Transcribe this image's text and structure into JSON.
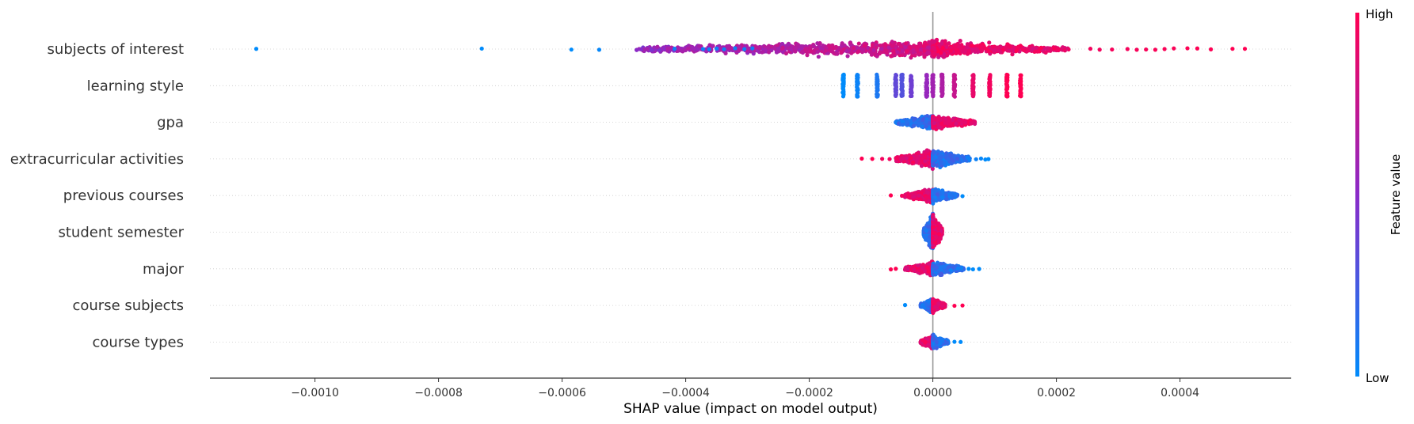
{
  "chart_data": {
    "type": "scatter",
    "subtype": "shap-beeswarm",
    "title": "",
    "xlabel": "SHAP value (impact on model output)",
    "xlim": [
      -0.00117,
      0.00058
    ],
    "xticks": [
      -0.001,
      -0.0008,
      -0.0006,
      -0.0004,
      -0.0002,
      0.0,
      0.0002,
      0.0004
    ],
    "xtick_labels": [
      "−0.0010",
      "−0.0008",
      "−0.0006",
      "−0.0004",
      "−0.0002",
      "0.0000",
      "0.0002",
      "0.0004"
    ],
    "zero_line": 0.0,
    "grid": "horizontal dotted per feature",
    "colorbar": {
      "label": "Feature value",
      "high_label": "High",
      "low_label": "Low",
      "low_color": "#008bfb",
      "mid_color": "#8a2bc8",
      "high_color": "#ff0052"
    },
    "features": [
      {
        "name": "subjects of interest",
        "clusters": [
          {
            "x": [
              -0.00048,
              2e-05
            ],
            "n": 900,
            "spread": 0.55,
            "color": "gradient-lowleft"
          },
          {
            "x": [
              0.0,
              0.00022
            ],
            "n": 500,
            "spread": 0.45,
            "color": "high"
          }
        ],
        "outliers": [
          {
            "x": -0.001095,
            "v": 0.0
          },
          {
            "x": -0.00073,
            "v": 0.0
          },
          {
            "x": -0.000585,
            "v": 0.0
          },
          {
            "x": -0.00054,
            "v": 0.02
          },
          {
            "x": -0.000418,
            "v": 0.05
          },
          {
            "x": -0.000372,
            "v": 0.05
          },
          {
            "x": -0.000362,
            "v": 0.05
          },
          {
            "x": -0.00035,
            "v": 0.06
          },
          {
            "x": -0.000338,
            "v": 0.06
          },
          {
            "x": -0.00032,
            "v": 0.07
          },
          {
            "x": -0.000305,
            "v": 0.07
          },
          {
            "x": -0.000292,
            "v": 0.08
          },
          {
            "x": 0.000255,
            "v": 0.95
          },
          {
            "x": 0.00027,
            "v": 0.95
          },
          {
            "x": 0.00029,
            "v": 0.96
          },
          {
            "x": 0.000315,
            "v": 0.96
          },
          {
            "x": 0.00033,
            "v": 0.97
          },
          {
            "x": 0.000345,
            "v": 0.97
          },
          {
            "x": 0.00036,
            "v": 0.98
          },
          {
            "x": 0.000375,
            "v": 0.98
          },
          {
            "x": 0.00039,
            "v": 0.98
          },
          {
            "x": 0.000412,
            "v": 0.99
          },
          {
            "x": 0.000428,
            "v": 0.99
          },
          {
            "x": 0.00045,
            "v": 0.99
          },
          {
            "x": 0.000485,
            "v": 1.0
          },
          {
            "x": 0.000505,
            "v": 1.0
          }
        ]
      },
      {
        "name": "learning style",
        "bars": [
          {
            "x": -0.000145,
            "v": 0.0
          },
          {
            "x": -0.000122,
            "v": 0.04
          },
          {
            "x": -9e-05,
            "v": 0.1
          },
          {
            "x": -6e-05,
            "v": 0.35
          },
          {
            "x": -5e-05,
            "v": 0.3
          },
          {
            "x": -3.5e-05,
            "v": 0.4
          },
          {
            "x": -1e-05,
            "v": 0.55
          },
          {
            "x": 0.0,
            "v": 0.6
          },
          {
            "x": 1.5e-05,
            "v": 0.65
          },
          {
            "x": 3.5e-05,
            "v": 0.75
          },
          {
            "x": 6.5e-05,
            "v": 0.9
          },
          {
            "x": 9.2e-05,
            "v": 0.95
          },
          {
            "x": 0.00012,
            "v": 1.0
          },
          {
            "x": 0.000142,
            "v": 1.0
          }
        ]
      },
      {
        "name": "gpa",
        "clusters": [
          {
            "x": [
              -6e-05,
              0.0
            ],
            "n": 500,
            "spread": 0.4,
            "color": "low"
          },
          {
            "x": [
              0.0,
              6.8e-05
            ],
            "n": 500,
            "spread": 0.4,
            "color": "high"
          }
        ],
        "outliers": []
      },
      {
        "name": "extracurricular activities",
        "clusters": [
          {
            "x": [
              -6e-05,
              0.0
            ],
            "n": 600,
            "spread": 0.5,
            "color": "high"
          },
          {
            "x": [
              0.0,
              6e-05
            ],
            "n": 600,
            "spread": 0.5,
            "color": "low"
          }
        ],
        "outliers": [
          {
            "x": -0.000115,
            "v": 1.0
          },
          {
            "x": -9.8e-05,
            "v": 1.0
          },
          {
            "x": -8.2e-05,
            "v": 0.95
          },
          {
            "x": -7e-05,
            "v": 0.95
          },
          {
            "x": 7e-05,
            "v": 0.05
          },
          {
            "x": 7.8e-05,
            "v": 0.02
          },
          {
            "x": 8.5e-05,
            "v": 0.0
          },
          {
            "x": 9e-05,
            "v": 0.0
          }
        ]
      },
      {
        "name": "previous courses",
        "clusters": [
          {
            "x": [
              -4.5e-05,
              0.0
            ],
            "n": 450,
            "spread": 0.4,
            "color": "high"
          },
          {
            "x": [
              0.0,
              4e-05
            ],
            "n": 400,
            "spread": 0.4,
            "color": "low"
          }
        ],
        "outliers": [
          {
            "x": -6.8e-05,
            "v": 1.0
          },
          {
            "x": -5e-05,
            "v": 0.95
          },
          {
            "x": 4.8e-05,
            "v": 0.0
          }
        ]
      },
      {
        "name": "student semester",
        "clusters": [
          {
            "x": [
              -1.5e-05,
              0.0
            ],
            "n": 700,
            "spread": 1.0,
            "color": "low"
          },
          {
            "x": [
              0.0,
              1.5e-05
            ],
            "n": 700,
            "spread": 1.0,
            "color": "high"
          }
        ],
        "outliers": []
      },
      {
        "name": "major",
        "clusters": [
          {
            "x": [
              -4.5e-05,
              0.0
            ],
            "n": 400,
            "spread": 0.4,
            "color": "high"
          },
          {
            "x": [
              0.0,
              5e-05
            ],
            "n": 400,
            "spread": 0.4,
            "color": "low"
          }
        ],
        "outliers": [
          {
            "x": -6.8e-05,
            "v": 1.0
          },
          {
            "x": -6e-05,
            "v": 1.0
          },
          {
            "x": 5.8e-05,
            "v": 0.0
          },
          {
            "x": 6.5e-05,
            "v": 0.0
          },
          {
            "x": 7.5e-05,
            "v": 0.0
          }
        ]
      },
      {
        "name": "course subjects",
        "clusters": [
          {
            "x": [
              -2e-05,
              0.0
            ],
            "n": 350,
            "spread": 0.4,
            "color": "low"
          },
          {
            "x": [
              0.0,
              2e-05
            ],
            "n": 350,
            "spread": 0.4,
            "color": "high"
          }
        ],
        "outliers": [
          {
            "x": -4.5e-05,
            "v": 0.0
          },
          {
            "x": 3.5e-05,
            "v": 1.0
          },
          {
            "x": 4.8e-05,
            "v": 1.0
          }
        ]
      },
      {
        "name": "course types",
        "clusters": [
          {
            "x": [
              -2e-05,
              0.0
            ],
            "n": 350,
            "spread": 0.4,
            "color": "high"
          },
          {
            "x": [
              0.0,
              2.5e-05
            ],
            "n": 350,
            "spread": 0.4,
            "color": "low"
          }
        ],
        "outliers": [
          {
            "x": 3.5e-05,
            "v": 0.0
          },
          {
            "x": 4.5e-05,
            "v": 0.0
          }
        ]
      }
    ]
  }
}
